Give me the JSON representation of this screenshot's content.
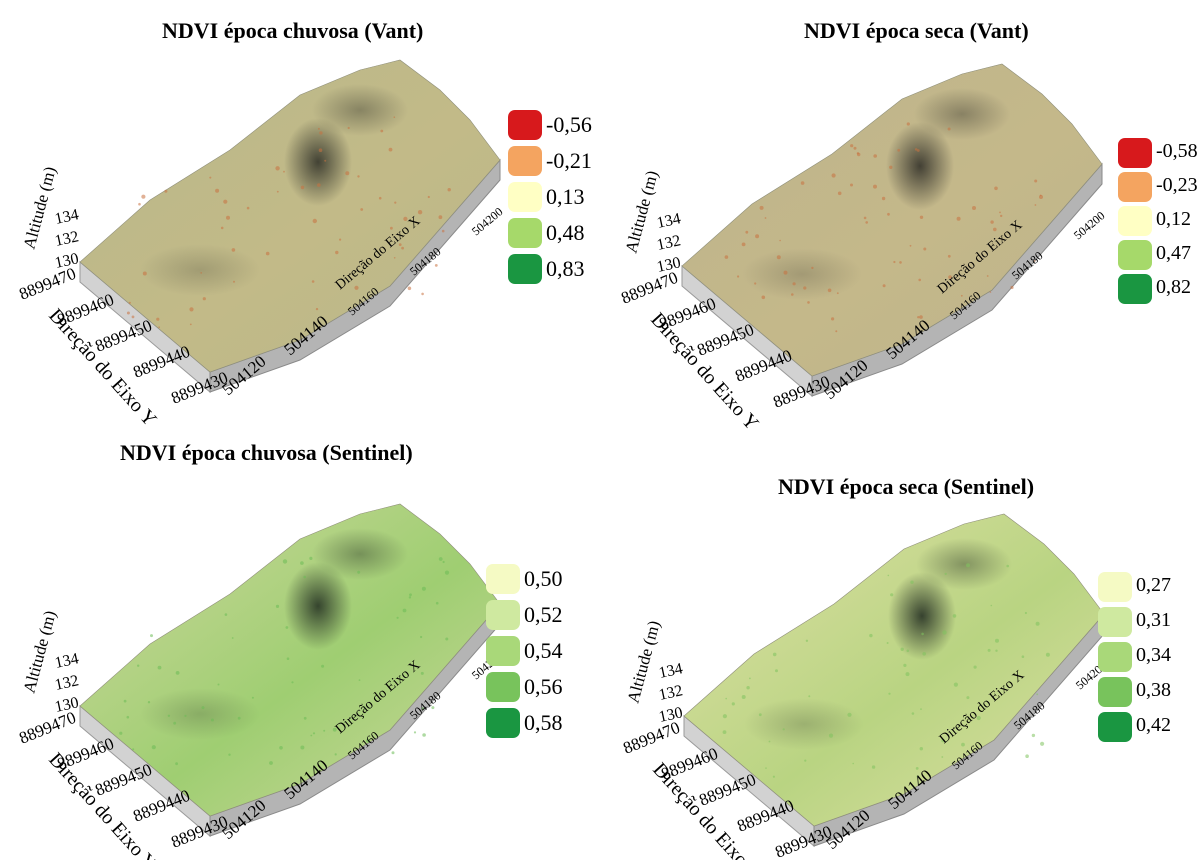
{
  "panels": [
    {
      "title": "NDVI época chuvosa (Vant)",
      "legend": [
        {
          "label": "-0,56",
          "color": "#d7191c"
        },
        {
          "label": "-0,21",
          "color": "#f4a460"
        },
        {
          "label": "0,13",
          "color": "#ffffc4"
        },
        {
          "label": "0,48",
          "color": "#a6d96a"
        },
        {
          "label": "0,83",
          "color": "#1a9641"
        }
      ],
      "surface": {
        "base": "#c2ba88",
        "mid": "#b9b78a",
        "dark": "#3c3c30",
        "speckle": "#c8713f"
      },
      "axes": {
        "z_label": "Altitude (m)",
        "z_ticks": [
          "130",
          "132",
          "134"
        ],
        "y_label": "Direção do Eixo Y",
        "y_ticks": [
          "8899470",
          "8899460",
          "8899450",
          "8899440",
          "8899430"
        ],
        "x_label": "Direção do Eixo X",
        "x_ticks": [
          "504120",
          "504140",
          "504160",
          "504180",
          "504200"
        ]
      }
    },
    {
      "title": "NDVI época seca (Vant)",
      "legend": [
        {
          "label": "-0,58",
          "color": "#d7191c"
        },
        {
          "label": "-0,23",
          "color": "#f4a460"
        },
        {
          "label": "0,12",
          "color": "#ffffc4"
        },
        {
          "label": "0,47",
          "color": "#a6d96a"
        },
        {
          "label": "0,82",
          "color": "#1a9641"
        }
      ],
      "surface": {
        "base": "#c4b88a",
        "mid": "#bdb48c",
        "dark": "#3c3a30",
        "speckle": "#c8713f"
      },
      "axes": {
        "z_label": "Altitude (m)",
        "z_ticks": [
          "130",
          "132",
          "134"
        ],
        "y_label": "Direção do Eixo Y",
        "y_ticks": [
          "8899470",
          "8899460",
          "8899450",
          "8899440",
          "8899430"
        ],
        "x_label": "Direção do Eixo X",
        "x_ticks": [
          "504120",
          "504140",
          "504160",
          "504180",
          "504200"
        ]
      }
    },
    {
      "title": "NDVI época chuvosa (Sentinel)",
      "legend": [
        {
          "label": "0,50",
          "color": "#f5fac4"
        },
        {
          "label": "0,52",
          "color": "#cfe9a0"
        },
        {
          "label": "0,54",
          "color": "#a9d879"
        },
        {
          "label": "0,56",
          "color": "#78c35c"
        },
        {
          "label": "0,58",
          "color": "#1a9641"
        }
      ],
      "surface": {
        "base": "#9fce72",
        "mid": "#cfd89e",
        "dark": "#2f3d2a",
        "speckle": "#6cbb55"
      },
      "axes": {
        "z_label": "Altitude (m)",
        "z_ticks": [
          "130",
          "132",
          "134"
        ],
        "y_label": "Direção do Eixo Y",
        "y_ticks": [
          "8899470",
          "8899460",
          "8899450",
          "8899440",
          "8899430"
        ],
        "x_label": "Direção do Eixo X",
        "x_ticks": [
          "504120",
          "504140",
          "504160",
          "504180",
          "504200"
        ]
      }
    },
    {
      "title": "NDVI época seca (Sentinel)",
      "legend": [
        {
          "label": "0,27",
          "color": "#f5fac4"
        },
        {
          "label": "0,31",
          "color": "#cfe9a0"
        },
        {
          "label": "0,34",
          "color": "#a9d879"
        },
        {
          "label": "0,38",
          "color": "#78c35c"
        },
        {
          "label": "0,42",
          "color": "#1a9641"
        }
      ],
      "surface": {
        "base": "#b9d482",
        "mid": "#dfe0a6",
        "dark": "#2f3a2a",
        "speckle": "#7fc25e"
      },
      "axes": {
        "z_label": "Altitude (m)",
        "z_ticks": [
          "130",
          "132",
          "134"
        ],
        "y_label": "Direção do Eixo Y",
        "y_ticks": [
          "8899470",
          "8899460",
          "8899450",
          "8899440",
          "8899430"
        ],
        "x_label": "Direção do Eixo X",
        "x_ticks": [
          "504120",
          "504140",
          "504160",
          "504180",
          "504200"
        ]
      }
    }
  ]
}
